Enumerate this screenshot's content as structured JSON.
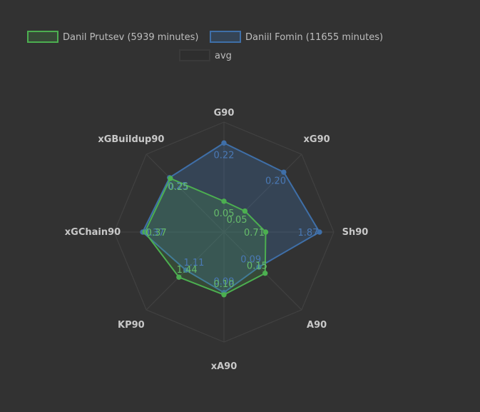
{
  "chart_data": {
    "type": "radar",
    "axes": [
      "G90",
      "xG90",
      "Sh90",
      "A90",
      "xA90",
      "KP90",
      "xGChain90",
      "xGBuildup90"
    ],
    "legend": {
      "placement": "top"
    },
    "grid": true,
    "series": [
      {
        "name": "Danil Prutsev (5939 minutes)",
        "color": "#4caf50",
        "fill": "rgba(76,175,80,0.18)",
        "values": [
          0.05,
          0.05,
          0.71,
          0.15,
          0.1,
          1.44,
          0.37,
          0.25
        ],
        "labels": [
          "0.05",
          "0.05",
          "0.71",
          "0.15",
          "0.10",
          "1.44",
          "0.37",
          "0.25"
        ],
        "fraction": [
          0.28,
          0.27,
          0.38,
          0.53,
          0.57,
          0.58,
          0.72,
          0.69
        ]
      },
      {
        "name": "Daniil Fomin (11655 minutes)",
        "color": "#3f6fa8",
        "fill": "rgba(63,111,168,0.30)",
        "values": [
          0.22,
          0.2,
          1.87,
          0.09,
          0.09,
          1.11,
          0.37,
          0.25
        ],
        "labels": [
          "0.22",
          "0.20",
          "1.87",
          "0.09",
          "0.09",
          "1.11",
          "0.37",
          "0.25"
        ],
        "fraction": [
          0.81,
          0.77,
          0.87,
          0.45,
          0.55,
          0.49,
          0.74,
          0.7
        ]
      },
      {
        "name": "avg",
        "color": "#3a3a3a",
        "fill": "#2e2e2e",
        "values": [],
        "labels": [],
        "fraction": []
      }
    ]
  }
}
